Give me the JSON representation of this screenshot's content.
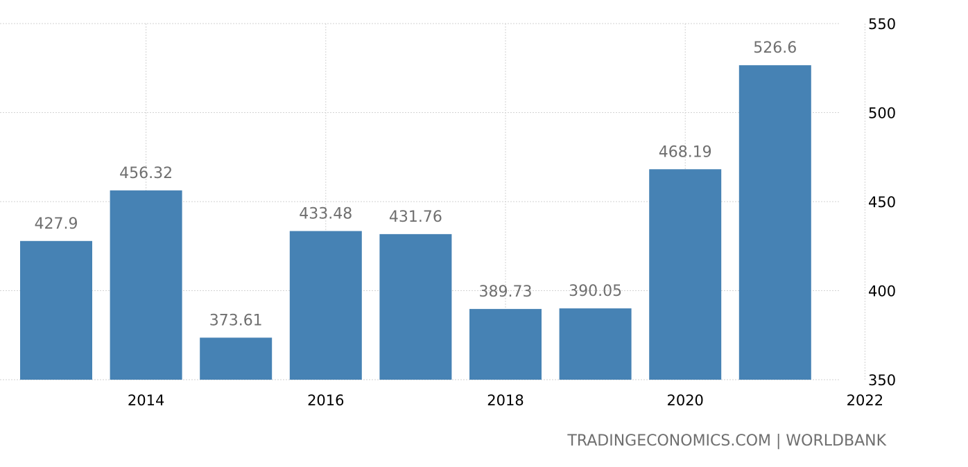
{
  "chart_data": {
    "type": "bar",
    "categories": [
      "2013",
      "2014",
      "2015",
      "2016",
      "2017",
      "2018",
      "2019",
      "2020",
      "2021"
    ],
    "values": [
      427.9,
      456.32,
      373.61,
      433.48,
      431.76,
      389.73,
      390.05,
      468.19,
      526.6
    ],
    "value_labels": [
      "427.9",
      "456.32",
      "373.61",
      "433.48",
      "431.76",
      "389.73",
      "390.05",
      "468.19",
      "526.6"
    ],
    "ylim": [
      350,
      550
    ],
    "y_ticks": [
      "350",
      "400",
      "450",
      "500",
      "550"
    ],
    "x_ticks": [
      "2014",
      "2016",
      "2018",
      "2020",
      "2022"
    ],
    "y_axis_side": "right",
    "grid": true,
    "legend": "none",
    "bar_color": "#4682b4"
  },
  "footer": {
    "source": "TRADINGECONOMICS.COM | WORLDBANK"
  }
}
